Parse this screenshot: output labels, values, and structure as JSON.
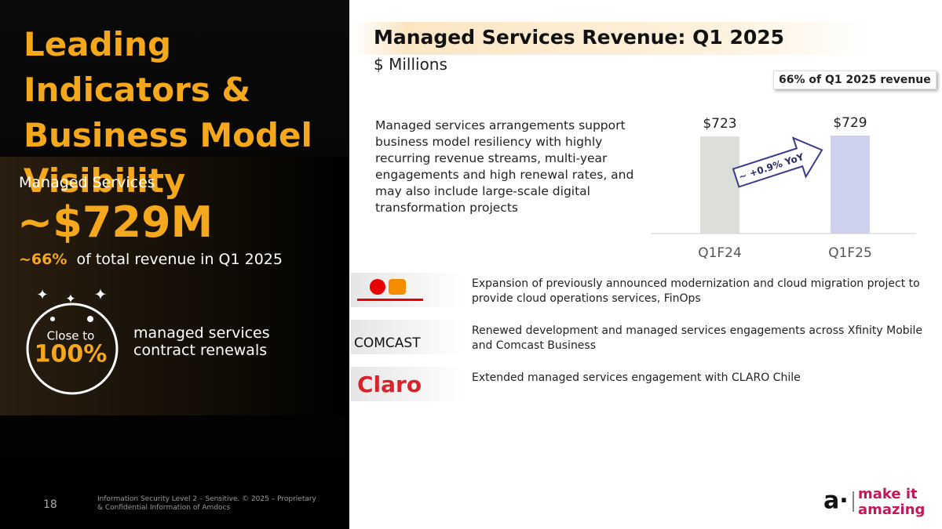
{
  "left": {
    "title": "Leading Indicators & Business Model Visibility",
    "label": "Managed Services",
    "big": "~$729M",
    "share": "~66%",
    "share_text": "of total revenue in Q1 2025",
    "circle_top": "Close to",
    "circle_big": "100%",
    "renewals": "managed services contract renewals"
  },
  "header": {
    "title": "Managed Services Revenue: Q1 2025",
    "subtitle": "$ Millions",
    "badge": "66% of Q1 2025 revenue"
  },
  "description": "Managed services arrangements support business model resiliency with highly recurring revenue streams, multi-year engagements and high renewal rates, and may also include large-scale digital transformation projects",
  "chart_data": {
    "type": "bar",
    "categories": [
      "Q1F24",
      "Q1F25"
    ],
    "values": [
      723,
      729
    ],
    "value_labels": [
      "$723",
      "$729"
    ],
    "colors": [
      "#dcdfd9",
      "#cdd1ee"
    ],
    "annotation": "~ +0.9% YoY"
  },
  "items": [
    {
      "text": "Expansion of previously announced modernization and cloud migration project to provide cloud operations services, FinOps"
    },
    {
      "logo": "COMCAST",
      "text": "Renewed development and managed services engagements across Xfinity Mobile and Comcast Business"
    },
    {
      "logo": "Claro",
      "text": "Extended managed services engagement with CLARO Chile"
    }
  ],
  "footer": {
    "page": "18",
    "note": "Information Security Level 2 – Sensitive. © 2025 – Proprietary & Confidential Information of Amdocs",
    "brand_top": "make it",
    "brand_bottom": "amazing"
  }
}
